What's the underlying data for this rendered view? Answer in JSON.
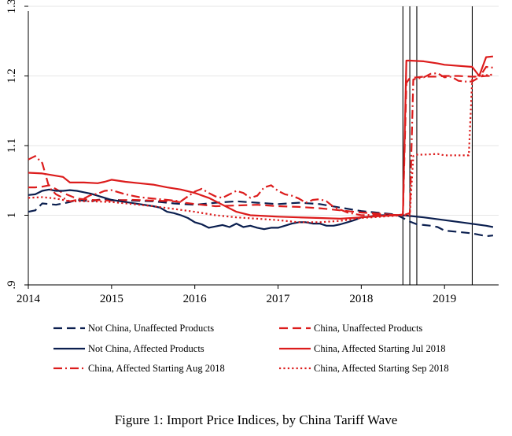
{
  "chart_data": {
    "type": "line",
    "title": "",
    "xlabel": "",
    "ylabel": "",
    "xlim": [
      2014,
      2019.65
    ],
    "ylim": [
      0.9,
      1.3
    ],
    "x_ticks": [
      2014,
      2015,
      2016,
      2017,
      2018,
      2019
    ],
    "x_tick_labels": [
      "2014",
      "2015",
      "2016",
      "2017",
      "2018",
      "2019"
    ],
    "y_ticks": [
      0.9,
      1.0,
      1.1,
      1.2,
      1.3
    ],
    "y_tick_labels": [
      ".9",
      "1",
      "1.1",
      "1.2",
      "1.3"
    ],
    "gridlines_y": [
      1.0,
      1.1,
      1.2,
      1.3
    ],
    "vertical_lines": [
      2018.5,
      2018.583,
      2018.667,
      2019.333
    ],
    "caption": "Figure 1: Import Price Indices, by China Tariff Wave",
    "colors": {
      "navy": "#0b1f4f",
      "red": "#dc1c1c",
      "grid": "#e6e6e6",
      "axis": "#000000"
    },
    "series": [
      {
        "name": "Not China, Unaffected Products",
        "color": "#0b1f4f",
        "dash": "dash",
        "x": [
          2014,
          2014.083,
          2014.167,
          2014.25,
          2014.333,
          2014.417,
          2014.5,
          2014.583,
          2014.667,
          2014.75,
          2014.833,
          2014.917,
          2015,
          2015.25,
          2015.5,
          2015.75,
          2016,
          2016.25,
          2016.5,
          2016.75,
          2017,
          2017.25,
          2017.5,
          2017.75,
          2018,
          2018.25,
          2018.417,
          2018.5,
          2018.583,
          2018.667,
          2018.75,
          2018.833,
          2018.917,
          2019,
          2019.167,
          2019.333,
          2019.417,
          2019.5,
          2019.583
        ],
        "values": [
          1.005,
          1.007,
          1.017,
          1.016,
          1.015,
          1.017,
          1.019,
          1.022,
          1.021,
          1.02,
          1.022,
          1.023,
          1.022,
          1.021,
          1.02,
          1.017,
          1.015,
          1.018,
          1.02,
          1.018,
          1.016,
          1.018,
          1.016,
          1.011,
          1.006,
          1.003,
          1.001,
          0.996,
          0.991,
          0.987,
          0.986,
          0.985,
          0.983,
          0.978,
          0.976,
          0.974,
          0.972,
          0.97,
          0.971
        ]
      },
      {
        "name": "China, Unaffected Products",
        "color": "#dc1c1c",
        "dash": "dash",
        "x": [
          2014,
          2014.083,
          2014.167,
          2014.25,
          2014.417,
          2014.583,
          2014.75,
          2015,
          2015.25,
          2015.5,
          2015.75,
          2016,
          2016.25,
          2016.5,
          2016.75,
          2017,
          2017.25,
          2017.5,
          2017.75,
          2018,
          2018.25,
          2018.417,
          2018.5,
          2018.542,
          2018.583,
          2018.667,
          2018.75,
          2018.917,
          2019,
          2019.167,
          2019.333,
          2019.417,
          2019.5,
          2019.583
        ],
        "values": [
          1.04,
          1.04,
          1.041,
          1.043,
          1.032,
          1.024,
          1.022,
          1.021,
          1.022,
          1.021,
          1.02,
          1.016,
          1.013,
          1.014,
          1.015,
          1.013,
          1.012,
          1.01,
          1.007,
          1.004,
          1.002,
          1.0,
          1.0,
          1.19,
          1.197,
          1.198,
          1.199,
          1.199,
          1.2,
          1.2,
          1.199,
          1.199,
          1.2,
          1.2
        ]
      },
      {
        "name": "Not China, Affected Products",
        "color": "#0b1f4f",
        "dash": "solid",
        "x": [
          2014,
          2014.083,
          2014.167,
          2014.25,
          2014.333,
          2014.417,
          2014.5,
          2014.583,
          2014.667,
          2014.75,
          2014.833,
          2015,
          2015.167,
          2015.333,
          2015.5,
          2015.583,
          2015.667,
          2015.75,
          2015.833,
          2015.917,
          2016,
          2016.083,
          2016.167,
          2016.25,
          2016.333,
          2016.417,
          2016.5,
          2016.583,
          2016.667,
          2016.75,
          2016.833,
          2016.917,
          2017,
          2017.083,
          2017.167,
          2017.25,
          2017.333,
          2017.417,
          2017.5,
          2017.583,
          2017.667,
          2017.75,
          2017.833,
          2017.917,
          2018,
          2018.25,
          2018.5,
          2018.75,
          2019,
          2019.25,
          2019.5,
          2019.583
        ],
        "values": [
          1.029,
          1.03,
          1.035,
          1.037,
          1.035,
          1.035,
          1.036,
          1.035,
          1.033,
          1.031,
          1.028,
          1.022,
          1.019,
          1.016,
          1.013,
          1.011,
          1.005,
          1.003,
          1.0,
          0.996,
          0.99,
          0.987,
          0.982,
          0.984,
          0.986,
          0.983,
          0.988,
          0.983,
          0.985,
          0.982,
          0.98,
          0.982,
          0.982,
          0.985,
          0.988,
          0.99,
          0.99,
          0.988,
          0.988,
          0.985,
          0.985,
          0.987,
          0.99,
          0.993,
          0.997,
          1.0,
          1.0,
          0.997,
          0.993,
          0.989,
          0.985,
          0.983
        ]
      },
      {
        "name": "China, Affected Starting Jul 2018",
        "color": "#dc1c1c",
        "dash": "solid",
        "x": [
          2014,
          2014.167,
          2014.417,
          2014.5,
          2014.667,
          2014.833,
          2014.917,
          2015,
          2015.167,
          2015.333,
          2015.5,
          2015.667,
          2015.833,
          2016,
          2016.167,
          2016.333,
          2016.5,
          2016.667,
          2016.833,
          2017,
          2017.25,
          2017.5,
          2017.75,
          2018,
          2018.25,
          2018.417,
          2018.5,
          2018.542,
          2018.583,
          2018.75,
          2018.917,
          2019,
          2019.333,
          2019.417,
          2019.5,
          2019.583
        ],
        "values": [
          1.061,
          1.06,
          1.055,
          1.047,
          1.047,
          1.046,
          1.048,
          1.051,
          1.048,
          1.046,
          1.044,
          1.04,
          1.037,
          1.032,
          1.025,
          1.015,
          1.005,
          1.0,
          0.999,
          0.998,
          0.997,
          0.996,
          0.995,
          0.997,
          0.999,
          1.0,
          1.001,
          1.222,
          1.222,
          1.221,
          1.218,
          1.216,
          1.213,
          1.2,
          1.227,
          1.228
        ]
      },
      {
        "name": "China, Affected Starting Aug 2018",
        "color": "#dc1c1c",
        "dash": "dashdot",
        "x": [
          2014,
          2014.083,
          2014.167,
          2014.25,
          2014.333,
          2014.417,
          2014.5,
          2014.583,
          2014.667,
          2014.75,
          2014.833,
          2014.917,
          2015,
          2015.167,
          2015.333,
          2015.5,
          2015.667,
          2015.833,
          2016,
          2016.083,
          2016.167,
          2016.25,
          2016.333,
          2016.417,
          2016.5,
          2016.583,
          2016.667,
          2016.75,
          2016.833,
          2016.917,
          2017,
          2017.083,
          2017.167,
          2017.25,
          2017.333,
          2017.417,
          2017.5,
          2017.583,
          2017.667,
          2017.75,
          2017.833,
          2018,
          2018.25,
          2018.5,
          2018.583,
          2018.625,
          2018.667,
          2018.75,
          2018.833,
          2018.917,
          2019,
          2019.083,
          2019.167,
          2019.25,
          2019.333,
          2019.417,
          2019.5,
          2019.583
        ],
        "values": [
          1.08,
          1.085,
          1.075,
          1.04,
          1.03,
          1.025,
          1.02,
          1.022,
          1.024,
          1.029,
          1.031,
          1.035,
          1.036,
          1.03,
          1.026,
          1.024,
          1.022,
          1.02,
          1.034,
          1.038,
          1.032,
          1.027,
          1.025,
          1.03,
          1.035,
          1.032,
          1.025,
          1.028,
          1.04,
          1.043,
          1.035,
          1.03,
          1.028,
          1.024,
          1.018,
          1.022,
          1.023,
          1.02,
          1.012,
          1.008,
          1.004,
          1.0,
          1.001,
          1.0,
          1.003,
          1.195,
          1.196,
          1.198,
          1.203,
          1.204,
          1.198,
          1.199,
          1.193,
          1.192,
          1.192,
          1.198,
          1.213,
          1.212
        ]
      },
      {
        "name": "China, Affected Starting Sep 2018",
        "color": "#dc1c1c",
        "dash": "dot",
        "x": [
          2014,
          2014.167,
          2014.333,
          2014.5,
          2014.75,
          2015,
          2015.25,
          2015.5,
          2015.75,
          2016,
          2016.25,
          2016.5,
          2016.75,
          2017,
          2017.25,
          2017.5,
          2017.75,
          2018,
          2018.25,
          2018.5,
          2018.583,
          2018.625,
          2018.667,
          2018.75,
          2018.917,
          2019,
          2019.25,
          2019.292,
          2019.333,
          2019.375,
          2019.417,
          2019.5,
          2019.583
        ],
        "values": [
          1.025,
          1.026,
          1.024,
          1.02,
          1.02,
          1.019,
          1.016,
          1.013,
          1.009,
          1.005,
          1.0,
          0.997,
          0.995,
          0.993,
          0.99,
          0.99,
          0.992,
          0.996,
          0.998,
          1.0,
          1.0,
          1.085,
          1.087,
          1.087,
          1.088,
          1.086,
          1.086,
          1.086,
          1.197,
          1.2,
          1.201,
          1.201,
          1.202
        ]
      }
    ],
    "legend": {
      "placement": "bottom",
      "columns": 2,
      "entries": [
        {
          "label": "Not China, Unaffected Products",
          "series": 0
        },
        {
          "label": "China, Unaffected Products",
          "series": 1
        },
        {
          "label": "Not China, Affected Products",
          "series": 2
        },
        {
          "label": "China, Affected Starting Jul 2018",
          "series": 3
        },
        {
          "label": "China, Affected Starting Aug 2018",
          "series": 4
        },
        {
          "label": "China, Affected Starting Sep 2018",
          "series": 5
        }
      ]
    }
  }
}
